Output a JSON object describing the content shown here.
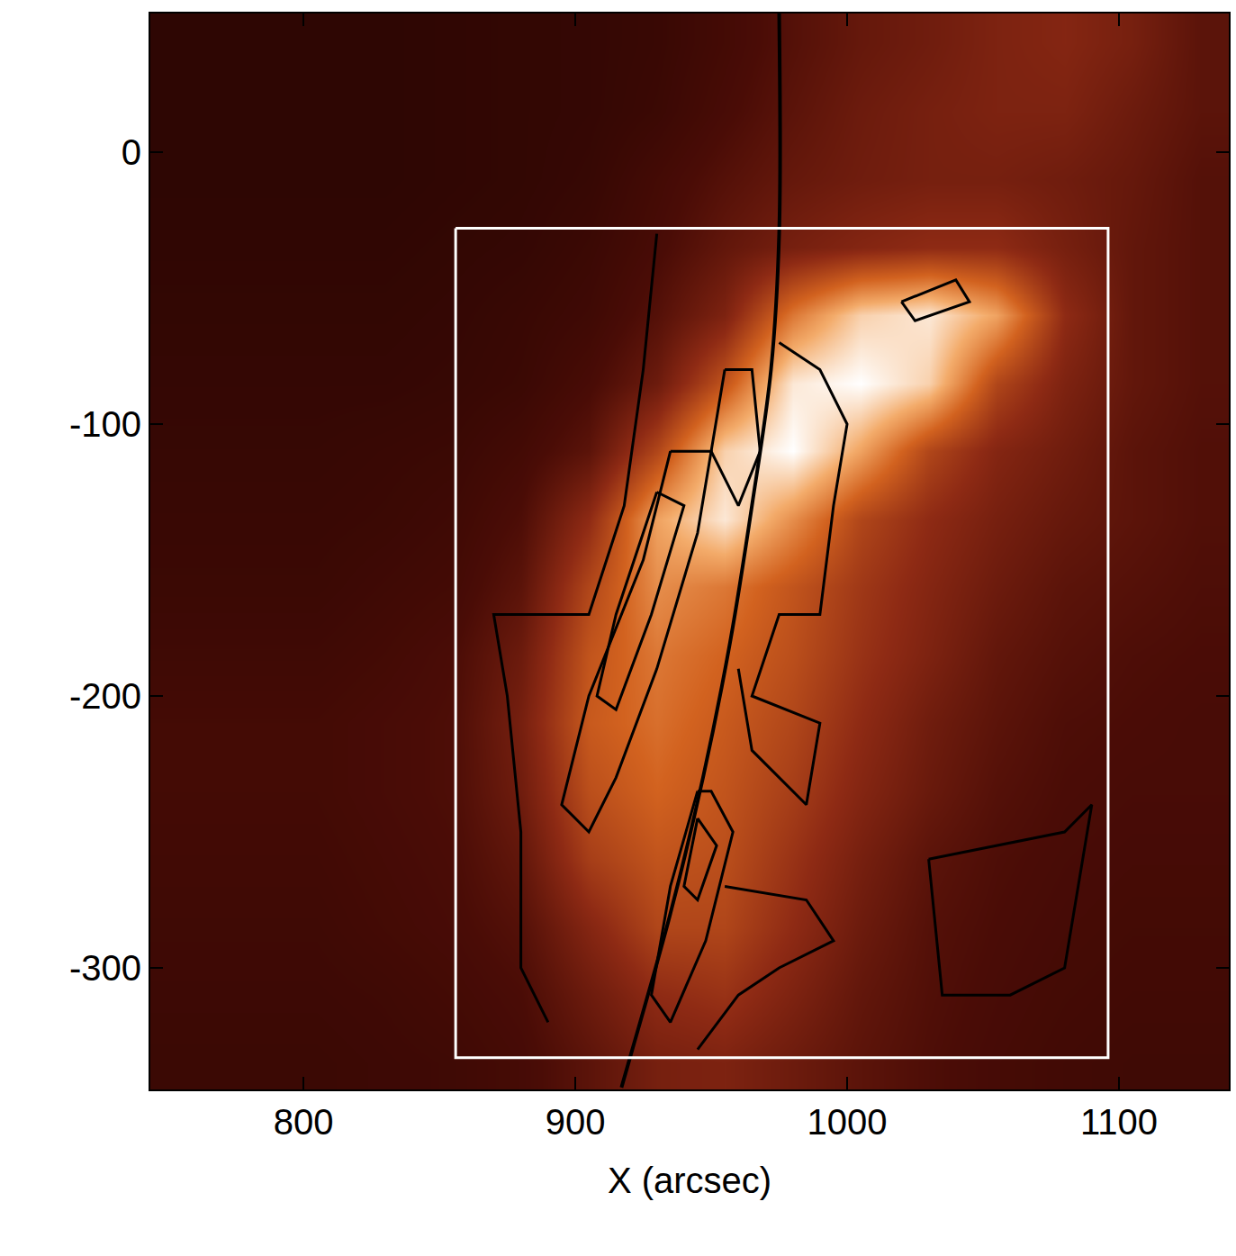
{
  "chart_data": {
    "type": "heatmap",
    "xlabel": "X (arcsec)",
    "xlim": [
      743.7,
      1140.4
    ],
    "ylim": [
      -344.7,
      51
    ],
    "xticks": [
      800,
      900,
      1000,
      1100
    ],
    "yticks": [
      0,
      -100,
      -200,
      -300
    ],
    "grid": false,
    "colorscale": [
      [
        0,
        "#140000"
      ],
      [
        0.25,
        "#4a0c06"
      ],
      [
        0.45,
        "#8e2a14"
      ],
      [
        0.65,
        "#d2621f"
      ],
      [
        0.82,
        "#f3ab6a"
      ],
      [
        1,
        "#ffffff"
      ]
    ],
    "zlim": [
      0,
      1
    ],
    "heatmap": {
      "x": [
        755,
        780,
        805,
        830,
        855,
        880,
        905,
        930,
        955,
        980,
        1005,
        1030,
        1055,
        1080,
        1105,
        1130
      ],
      "y": [
        40,
        15,
        -10,
        -35,
        -60,
        -85,
        -110,
        -135,
        -160,
        -185,
        -210,
        -235,
        -260,
        -285,
        -310,
        -335
      ],
      "z": [
        [
          0.12,
          0.12,
          0.12,
          0.12,
          0.13,
          0.14,
          0.15,
          0.17,
          0.22,
          0.28,
          0.33,
          0.36,
          0.4,
          0.42,
          0.38,
          0.3
        ],
        [
          0.12,
          0.12,
          0.12,
          0.12,
          0.13,
          0.14,
          0.15,
          0.18,
          0.24,
          0.3,
          0.35,
          0.38,
          0.4,
          0.4,
          0.35,
          0.3
        ],
        [
          0.12,
          0.12,
          0.12,
          0.12,
          0.13,
          0.14,
          0.16,
          0.22,
          0.28,
          0.33,
          0.36,
          0.38,
          0.38,
          0.36,
          0.33,
          0.28
        ],
        [
          0.13,
          0.13,
          0.13,
          0.13,
          0.14,
          0.15,
          0.18,
          0.24,
          0.32,
          0.38,
          0.42,
          0.45,
          0.45,
          0.38,
          0.32,
          0.28
        ],
        [
          0.14,
          0.14,
          0.14,
          0.14,
          0.15,
          0.17,
          0.2,
          0.28,
          0.4,
          0.7,
          0.9,
          0.95,
          0.8,
          0.45,
          0.32,
          0.28
        ],
        [
          0.15,
          0.15,
          0.15,
          0.15,
          0.16,
          0.18,
          0.24,
          0.35,
          0.6,
          0.95,
          1.0,
          0.9,
          0.55,
          0.4,
          0.32,
          0.28
        ],
        [
          0.16,
          0.16,
          0.16,
          0.17,
          0.18,
          0.22,
          0.3,
          0.55,
          0.9,
          1.0,
          0.8,
          0.55,
          0.42,
          0.36,
          0.3,
          0.27
        ],
        [
          0.17,
          0.17,
          0.17,
          0.18,
          0.2,
          0.26,
          0.45,
          0.8,
          0.95,
          0.75,
          0.55,
          0.45,
          0.38,
          0.33,
          0.3,
          0.27
        ],
        [
          0.18,
          0.18,
          0.18,
          0.2,
          0.22,
          0.3,
          0.55,
          0.75,
          0.7,
          0.6,
          0.5,
          0.42,
          0.35,
          0.3,
          0.28,
          0.26
        ],
        [
          0.2,
          0.2,
          0.2,
          0.22,
          0.25,
          0.35,
          0.6,
          0.7,
          0.65,
          0.58,
          0.48,
          0.4,
          0.32,
          0.28,
          0.26,
          0.25
        ],
        [
          0.22,
          0.22,
          0.22,
          0.24,
          0.26,
          0.38,
          0.62,
          0.68,
          0.62,
          0.55,
          0.45,
          0.36,
          0.3,
          0.26,
          0.25,
          0.24
        ],
        [
          0.22,
          0.22,
          0.22,
          0.24,
          0.26,
          0.36,
          0.58,
          0.65,
          0.6,
          0.52,
          0.42,
          0.34,
          0.28,
          0.25,
          0.24,
          0.24
        ],
        [
          0.21,
          0.21,
          0.21,
          0.23,
          0.25,
          0.32,
          0.52,
          0.6,
          0.58,
          0.48,
          0.38,
          0.3,
          0.26,
          0.24,
          0.23,
          0.23
        ],
        [
          0.2,
          0.2,
          0.2,
          0.22,
          0.24,
          0.28,
          0.42,
          0.55,
          0.55,
          0.45,
          0.35,
          0.28,
          0.25,
          0.23,
          0.22,
          0.22
        ],
        [
          0.19,
          0.19,
          0.19,
          0.2,
          0.22,
          0.25,
          0.35,
          0.45,
          0.48,
          0.4,
          0.32,
          0.27,
          0.24,
          0.22,
          0.21,
          0.21
        ],
        [
          0.18,
          0.18,
          0.18,
          0.19,
          0.2,
          0.23,
          0.3,
          0.38,
          0.4,
          0.35,
          0.3,
          0.26,
          0.23,
          0.21,
          0.2,
          0.2
        ]
      ]
    },
    "contour_color": "#000000",
    "contours": [
      {
        "x": [
          930,
          925,
          918,
          905,
          870,
          875,
          880,
          880,
          890
        ],
        "y": [
          -30,
          -80,
          -130,
          -170,
          -170,
          -200,
          -250,
          -300,
          -320
        ]
      },
      {
        "x": [
          935,
          925,
          905,
          895,
          905,
          915,
          930,
          945,
          950,
          935
        ],
        "y": [
          -110,
          -150,
          -200,
          -240,
          -250,
          -230,
          -190,
          -140,
          -110,
          -110
        ]
      },
      {
        "x": [
          930,
          915,
          908,
          915,
          928,
          940,
          930
        ],
        "y": [
          -125,
          -170,
          -200,
          -205,
          -170,
          -130,
          -125
        ]
      },
      {
        "x": [
          955,
          950,
          960,
          968,
          965,
          955
        ],
        "y": [
          -80,
          -110,
          -130,
          -110,
          -80,
          -80
        ]
      },
      {
        "x": [
          975,
          990,
          1000,
          995,
          990,
          975,
          965,
          990,
          985,
          965,
          960
        ],
        "y": [
          -70,
          -80,
          -100,
          -130,
          -170,
          -170,
          -200,
          -210,
          -240,
          -220,
          -190
        ]
      },
      {
        "x": [
          1020,
          1040,
          1045,
          1025,
          1020
        ],
        "y": [
          -55,
          -47,
          -55,
          -62,
          -55
        ]
      },
      {
        "x": [
          945,
          935,
          928,
          935,
          948,
          958,
          950,
          945
        ],
        "y": [
          -235,
          -270,
          -310,
          -320,
          -290,
          -250,
          -235,
          -235
        ]
      },
      {
        "x": [
          945,
          940,
          945,
          952,
          945
        ],
        "y": [
          -245,
          -270,
          -275,
          -255,
          -245
        ]
      },
      {
        "x": [
          955,
          985,
          995,
          975,
          960,
          945
        ],
        "y": [
          -270,
          -275,
          -290,
          -300,
          -310,
          -330
        ]
      },
      {
        "x": [
          1030,
          1080,
          1090,
          1080,
          1060,
          1035,
          1030
        ],
        "y": [
          -260,
          -250,
          -240,
          -300,
          -310,
          -310,
          -260
        ]
      }
    ],
    "limb": {
      "x": [
        975,
        975,
        972,
        965,
        957,
        947,
        935,
        921,
        917
      ],
      "y": [
        51,
        -30,
        -80,
        -130,
        -180,
        -230,
        -280,
        -330,
        -344
      ],
      "color": "#000000"
    },
    "box": {
      "x": [
        856,
        1096,
        1096,
        856,
        856
      ],
      "y": [
        -28,
        -28,
        -333,
        -333,
        -28
      ],
      "color": "#ffffff"
    }
  }
}
